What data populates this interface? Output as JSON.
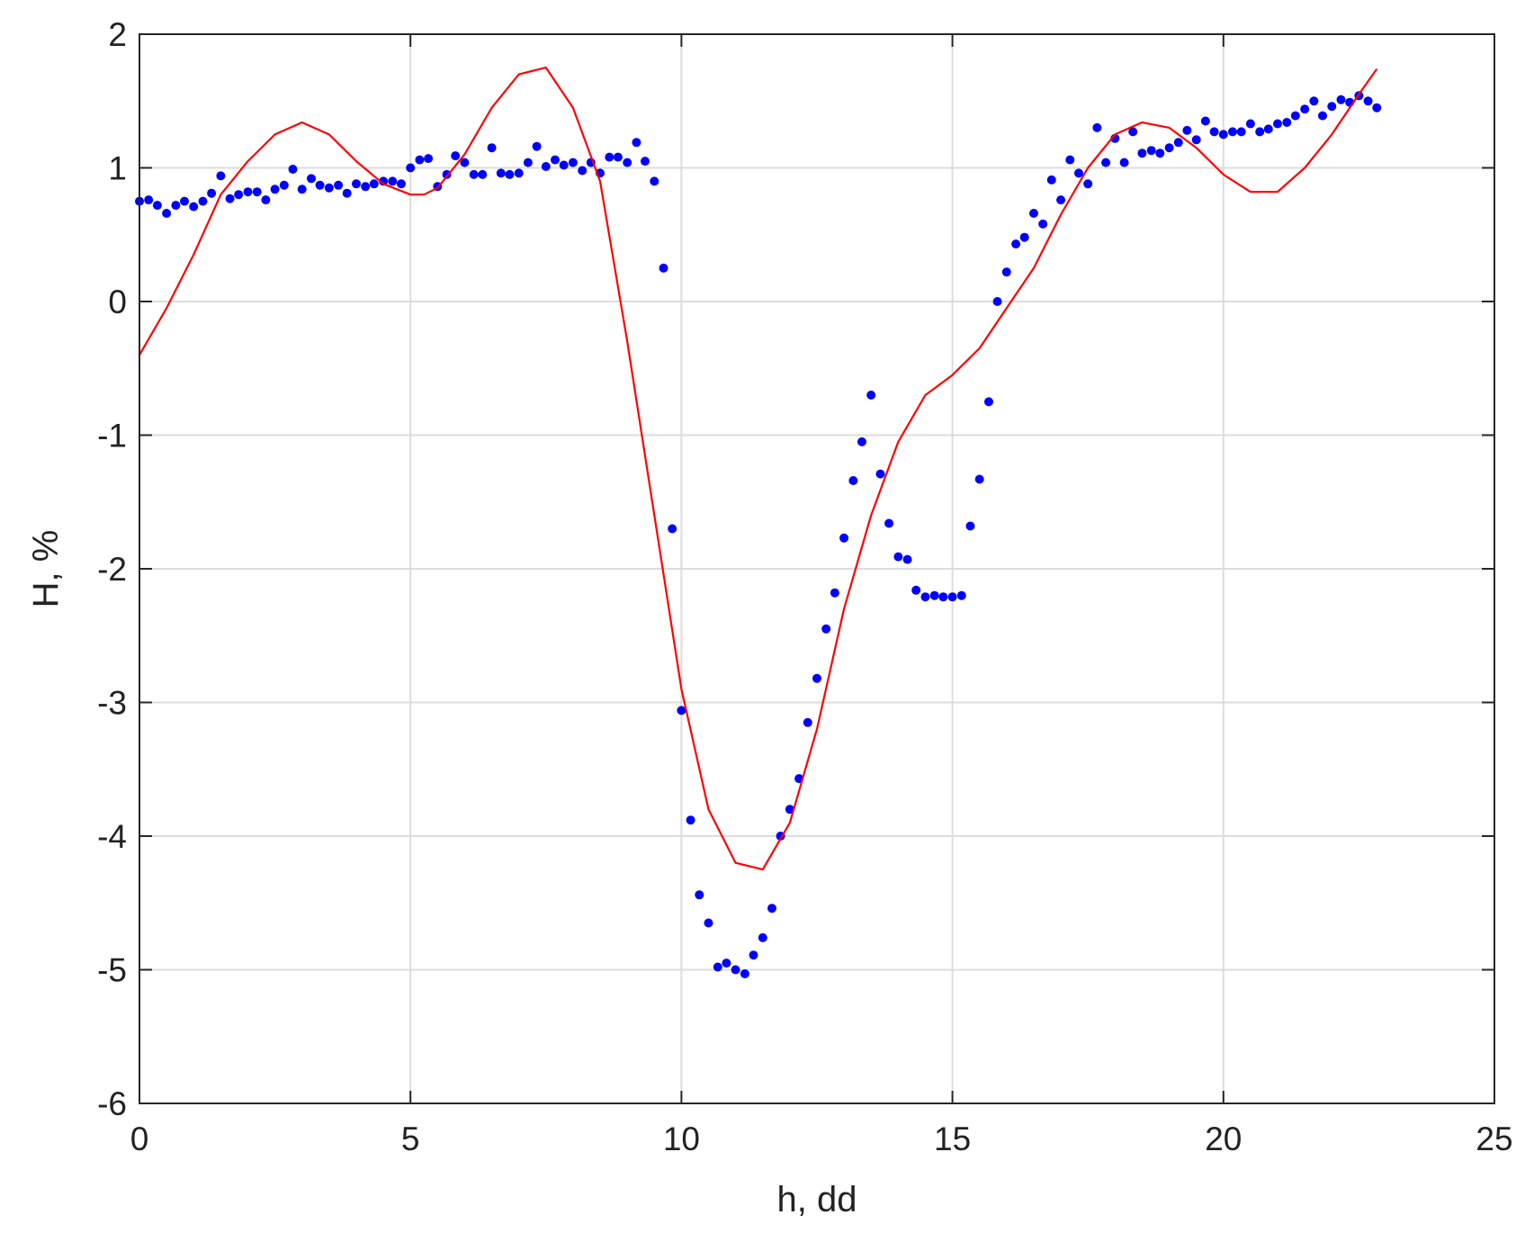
{
  "chart_data": {
    "type": "scatter",
    "title": "",
    "xlabel": "h, dd",
    "ylabel": "H, %",
    "xlim": [
      0,
      25
    ],
    "ylim": [
      -6,
      2
    ],
    "xticks": [
      0,
      5,
      10,
      15,
      20,
      25
    ],
    "yticks": [
      -6,
      -5,
      -4,
      -3,
      -2,
      -1,
      0,
      1,
      2
    ],
    "grid": true,
    "legend": "none",
    "series": [
      {
        "style": "markers",
        "color": "#0000ff",
        "x": [
          0.0,
          0.17,
          0.33,
          0.5,
          0.67,
          0.83,
          1.0,
          1.17,
          1.33,
          1.5,
          1.67,
          1.83,
          2.0,
          2.17,
          2.33,
          2.5,
          2.67,
          2.83,
          3.0,
          3.17,
          3.33,
          3.5,
          3.67,
          3.83,
          4.0,
          4.17,
          4.33,
          4.5,
          4.67,
          4.83,
          5.0,
          5.17,
          5.33,
          5.5,
          5.67,
          5.83,
          6.0,
          6.17,
          6.33,
          6.5,
          6.67,
          6.83,
          7.0,
          7.17,
          7.33,
          7.5,
          7.67,
          7.83,
          8.0,
          8.17,
          8.33,
          8.5,
          8.67,
          8.83,
          9.0,
          9.17,
          9.33,
          9.5,
          9.67,
          9.83,
          10.0,
          10.17,
          10.33,
          10.5,
          10.67,
          10.83,
          11.0,
          11.17,
          11.33,
          11.5,
          11.67,
          11.83,
          12.0,
          12.17,
          12.33,
          12.5,
          12.67,
          12.83,
          13.0,
          13.17,
          13.33,
          13.5,
          13.67,
          13.83,
          14.0,
          14.17,
          14.33,
          14.5,
          14.67,
          14.83,
          15.0,
          15.17,
          15.33,
          15.5,
          15.67,
          15.83,
          16.0,
          16.17,
          16.33,
          16.5,
          16.67,
          16.83,
          17.0,
          17.17,
          17.33,
          17.5,
          17.67,
          17.83,
          18.0,
          18.17,
          18.33,
          18.5,
          18.67,
          18.83,
          19.0,
          19.17,
          19.33,
          19.5,
          19.67,
          19.83,
          20.0,
          20.17,
          20.33,
          20.5,
          20.67,
          20.83,
          21.0,
          21.17,
          21.33,
          21.5,
          21.67,
          21.83,
          22.0,
          22.17,
          22.33,
          22.5,
          22.67,
          22.83
        ],
        "y": [
          0.75,
          0.76,
          0.72,
          0.66,
          0.72,
          0.75,
          0.71,
          0.75,
          0.81,
          0.94,
          0.77,
          0.8,
          0.82,
          0.82,
          0.76,
          0.84,
          0.87,
          0.99,
          0.84,
          0.92,
          0.87,
          0.85,
          0.87,
          0.81,
          0.88,
          0.86,
          0.88,
          0.9,
          0.9,
          0.88,
          1.0,
          1.06,
          1.07,
          0.86,
          0.95,
          1.09,
          1.04,
          0.95,
          0.95,
          1.15,
          0.96,
          0.95,
          0.96,
          1.04,
          1.16,
          1.01,
          1.06,
          1.02,
          1.04,
          0.98,
          1.04,
          0.96,
          1.08,
          1.08,
          1.04,
          1.19,
          1.05,
          0.9,
          0.25,
          -1.7,
          -3.06,
          -3.88,
          -4.44,
          -4.65,
          -4.98,
          -4.95,
          -5.0,
          -5.03,
          -4.89,
          -4.76,
          -4.54,
          -4.0,
          -3.8,
          -3.57,
          -3.15,
          -2.82,
          -2.45,
          -2.18,
          -1.77,
          -1.34,
          -1.05,
          -0.7,
          -1.29,
          -1.66,
          -1.91,
          -1.93,
          -2.16,
          -2.21,
          -2.2,
          -2.21,
          -2.21,
          -2.2,
          -1.68,
          -1.33,
          -0.75,
          0.0,
          0.22,
          0.43,
          0.48,
          0.66,
          0.58,
          0.91,
          0.76,
          1.06,
          0.96,
          0.88,
          1.3,
          1.04,
          1.22,
          1.04,
          1.27,
          1.11,
          1.13,
          1.11,
          1.15,
          1.19,
          1.28,
          1.21,
          1.35,
          1.27,
          1.25,
          1.27,
          1.27,
          1.33,
          1.27,
          1.29,
          1.33,
          1.34,
          1.39,
          1.44,
          1.5,
          1.39,
          1.46,
          1.51,
          1.49,
          1.54,
          1.5,
          1.45
        ]
      },
      {
        "style": "line",
        "color": "#ff0000",
        "x": [
          0.0,
          0.5,
          1.0,
          1.5,
          2.0,
          2.5,
          3.0,
          3.5,
          4.0,
          4.5,
          5.0,
          5.25,
          5.5,
          6.0,
          6.5,
          7.0,
          7.5,
          8.0,
          8.5,
          9.0,
          9.5,
          10.0,
          10.5,
          11.0,
          11.5,
          12.0,
          12.5,
          13.0,
          13.5,
          14.0,
          14.5,
          15.0,
          15.5,
          16.0,
          16.5,
          17.0,
          17.5,
          18.0,
          18.5,
          19.0,
          19.5,
          20.0,
          20.5,
          21.0,
          21.5,
          22.0,
          22.5,
          22.83
        ],
        "y": [
          -0.4,
          -0.05,
          0.35,
          0.8,
          1.05,
          1.25,
          1.34,
          1.25,
          1.05,
          0.88,
          0.8,
          0.8,
          0.85,
          1.1,
          1.45,
          1.7,
          1.75,
          1.45,
          0.9,
          -0.3,
          -1.6,
          -2.9,
          -3.8,
          -4.2,
          -4.25,
          -3.9,
          -3.2,
          -2.3,
          -1.6,
          -1.05,
          -0.7,
          -0.55,
          -0.35,
          -0.05,
          0.25,
          0.65,
          1.0,
          1.25,
          1.34,
          1.3,
          1.15,
          0.95,
          0.82,
          0.82,
          1.0,
          1.25,
          1.55,
          1.74
        ]
      }
    ]
  }
}
